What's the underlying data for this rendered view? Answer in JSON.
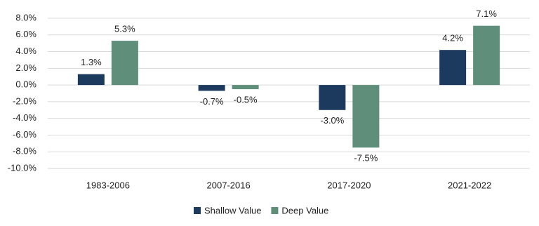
{
  "chart_data": {
    "type": "bar",
    "categories": [
      "1983-2006",
      "2007-2016",
      "2017-2020",
      "2021-2022"
    ],
    "series": [
      {
        "name": "Shallow Value",
        "color": "#1c3a5e",
        "values": [
          1.3,
          -0.7,
          -3.0,
          4.2
        ],
        "value_labels": [
          "1.3%",
          "-0.7%",
          "-3.0%",
          "4.2%"
        ]
      },
      {
        "name": "Deep Value",
        "color": "#5f8f7a",
        "values": [
          5.3,
          -0.5,
          -7.5,
          7.1
        ],
        "value_labels": [
          "5.3%",
          "-0.5%",
          "-7.5%",
          "7.1%"
        ]
      }
    ],
    "ylim": [
      -10,
      8
    ],
    "yticks": [
      {
        "value": -10,
        "label": "-10.0%"
      },
      {
        "value": -8,
        "label": "-8.0%"
      },
      {
        "value": -6,
        "label": "-6.0%"
      },
      {
        "value": -4,
        "label": "-4.0%"
      },
      {
        "value": -2,
        "label": "-2.0%"
      },
      {
        "value": 0,
        "label": "0.0%"
      },
      {
        "value": 2,
        "label": "2.0%"
      },
      {
        "value": 4,
        "label": "4.0%"
      },
      {
        "value": 6,
        "label": "6.0%"
      },
      {
        "value": 8,
        "label": "8.0%"
      }
    ],
    "grid": true,
    "legend": "bottom"
  }
}
